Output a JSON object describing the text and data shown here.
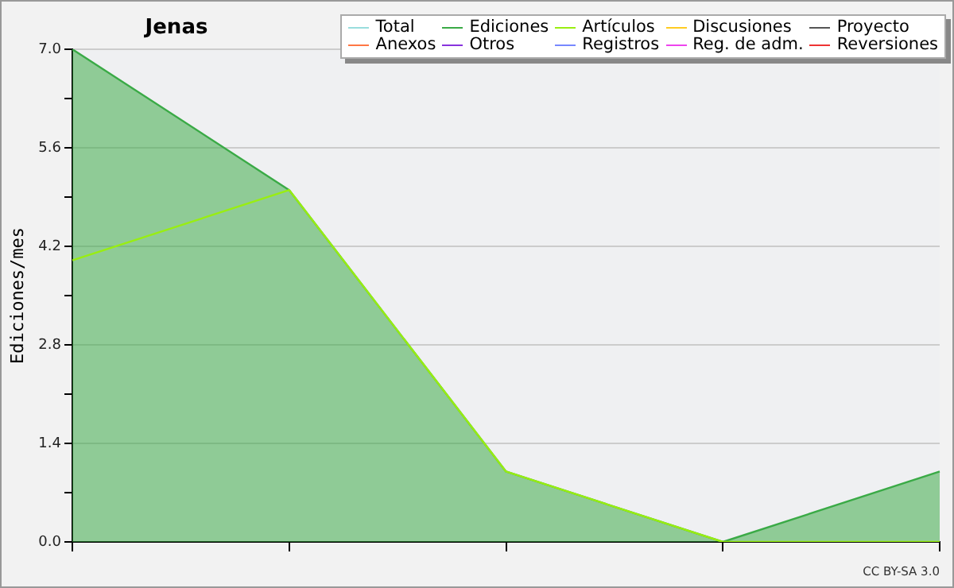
{
  "chart_data": {
    "type": "line",
    "title": "Jenas",
    "ylabel": "Ediciones/mes",
    "categories": [
      null,
      null,
      null,
      null,
      null
    ],
    "ylim": [
      0,
      7
    ],
    "yticks": [
      {
        "value": 0,
        "label": "0.0"
      },
      {
        "value": 0.7,
        "label": null
      },
      {
        "value": 1.4,
        "label": "1.4"
      },
      {
        "value": 2.1,
        "label": null
      },
      {
        "value": 2.8,
        "label": "2.8"
      },
      {
        "value": 3.5,
        "label": null
      },
      {
        "value": 4.2,
        "label": "4.2"
      },
      {
        "value": 4.9,
        "label": null
      },
      {
        "value": 5.6,
        "label": "5.6"
      },
      {
        "value": 6.3,
        "label": null
      },
      {
        "value": 7,
        "label": "7.0"
      }
    ],
    "grid": "y",
    "legend": "top right",
    "marker": "none",
    "annotations": [
      "CC BY-SA 3.0"
    ],
    "series": [
      {
        "name": "Total",
        "color": "#99dddd",
        "values": [
          null,
          null,
          null,
          null,
          null
        ]
      },
      {
        "name": "Ediciones",
        "type": "area",
        "color": "#3aaa46",
        "values": [
          7,
          5,
          1,
          0,
          1
        ]
      },
      {
        "name": "Artículos",
        "color": "#99ee11",
        "values": [
          4,
          5,
          1,
          0,
          0
        ]
      },
      {
        "name": "Discusiones",
        "color": "#ffcc22",
        "values": [
          null,
          null,
          null,
          null,
          null
        ]
      },
      {
        "name": "Proyecto",
        "color": "#555555",
        "values": [
          null,
          null,
          null,
          null,
          null
        ]
      },
      {
        "name": "Anexos",
        "color": "#ff7744",
        "values": [
          null,
          null,
          null,
          null,
          null
        ]
      },
      {
        "name": "Otros",
        "color": "#8833dd",
        "values": [
          null,
          null,
          null,
          null,
          null
        ]
      },
      {
        "name": "Registros",
        "color": "#7788ff",
        "values": [
          null,
          null,
          null,
          null,
          null
        ]
      },
      {
        "name": "Reg. de adm.",
        "color": "#ee44ee",
        "values": [
          null,
          null,
          null,
          null,
          null
        ]
      },
      {
        "name": "Reversiones",
        "color": "#ee3333",
        "values": [
          null,
          null,
          null,
          null,
          null
        ]
      }
    ]
  }
}
